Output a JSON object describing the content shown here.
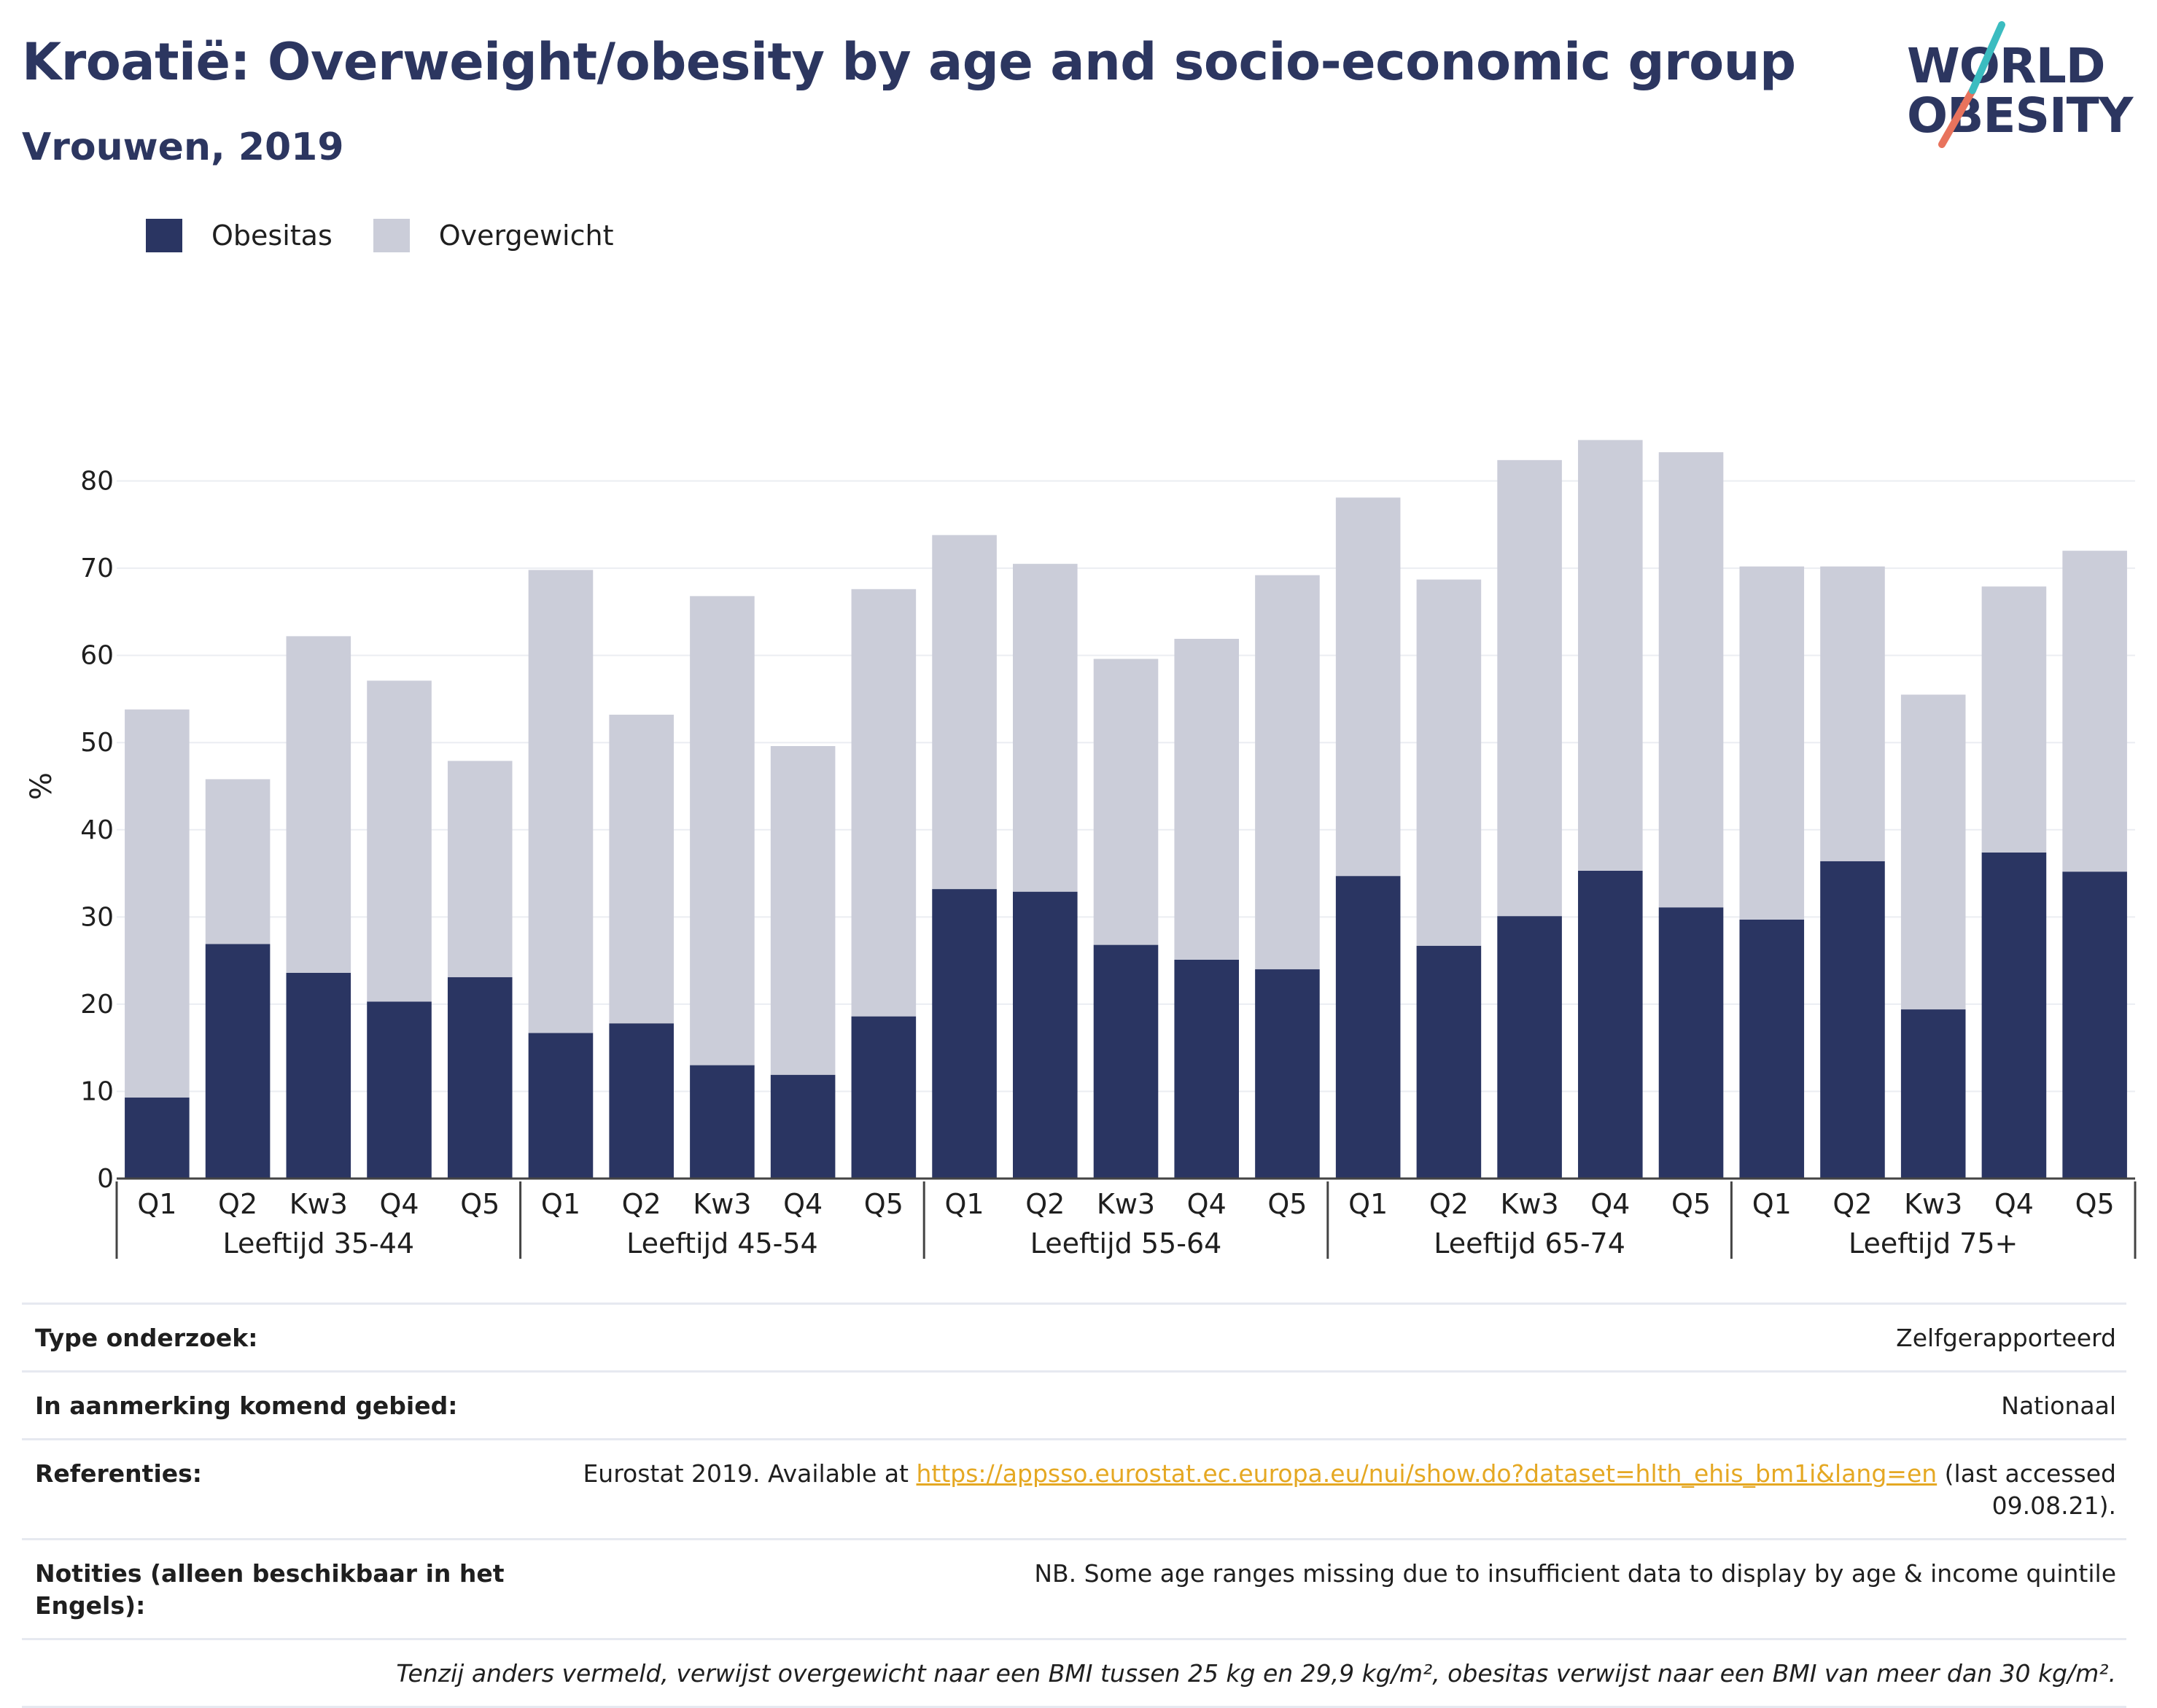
{
  "title": "Kroatië: Overweight/obesity by age and socio-economic group",
  "subtitle": "Vrouwen, 2019",
  "logo": {
    "line1": "WORLD",
    "line2": "OBESITY"
  },
  "legend": [
    {
      "label": "Obesitas",
      "color": "#2a3562"
    },
    {
      "label": "Overgewicht",
      "color": "#cbcdd9"
    }
  ],
  "chart_data": {
    "type": "bar",
    "stacked": true,
    "ylabel": "%",
    "ylim": [
      0,
      90
    ],
    "yticks": [
      0,
      10,
      20,
      30,
      40,
      50,
      60,
      70,
      80
    ],
    "grid": true,
    "groups": [
      {
        "label": "Leeftijd 35-44",
        "categories": [
          "Q1",
          "Q2",
          "Kw3",
          "Q4",
          "Q5"
        ]
      },
      {
        "label": "Leeftijd 45-54",
        "categories": [
          "Q1",
          "Q2",
          "Kw3",
          "Q4",
          "Q5"
        ]
      },
      {
        "label": "Leeftijd 55-64",
        "categories": [
          "Q1",
          "Q2",
          "Kw3",
          "Q4",
          "Q5"
        ]
      },
      {
        "label": "Leeftijd 65-74",
        "categories": [
          "Q1",
          "Q2",
          "Kw3",
          "Q4",
          "Q5"
        ]
      },
      {
        "label": "Leeftijd 75+",
        "categories": [
          "Q1",
          "Q2",
          "Kw3",
          "Q4",
          "Q5"
        ]
      }
    ],
    "series": [
      {
        "name": "Obesitas",
        "color": "#2a3562",
        "values": [
          9.3,
          26.9,
          23.6,
          20.3,
          23.1,
          16.7,
          17.8,
          13.0,
          11.9,
          18.6,
          33.2,
          32.9,
          26.8,
          25.1,
          24.0,
          34.7,
          26.7,
          30.1,
          35.3,
          31.1,
          29.7,
          36.4,
          19.4,
          37.4,
          35.2
        ]
      },
      {
        "name": "Overgewicht",
        "color": "#cbcdd9",
        "values": [
          44.5,
          18.9,
          38.6,
          36.8,
          24.8,
          53.1,
          35.4,
          53.8,
          37.7,
          49.0,
          40.6,
          37.6,
          32.8,
          36.8,
          45.2,
          43.4,
          42.0,
          52.3,
          49.4,
          52.2,
          40.5,
          33.8,
          36.1,
          30.5,
          36.8
        ]
      }
    ]
  },
  "info": {
    "survey_key": "Type onderzoek:",
    "survey_val": "Zelfgerapporteerd",
    "area_key": "In aanmerking komend gebied:",
    "area_val": "Nationaal",
    "ref_key": "Referenties:",
    "ref_pre": "Eurostat 2019. Available at ",
    "ref_link": "https://appsso.eurostat.ec.europa.eu/nui/show.do?dataset=hlth_ehis_bm1i&lang=en",
    "ref_post": " (last accessed 09.08.21).",
    "notes_key": "Notities (alleen beschikbaar in het Engels):",
    "notes_val": "NB. Some age ranges missing due to insufficient data to display by age & income quintile",
    "footnote": "Tenzij anders vermeld, verwijst overgewicht naar een BMI tussen 25 kg en 29,9 kg/m², obesitas verwijst naar een BMI van meer dan 30 kg/m²."
  }
}
